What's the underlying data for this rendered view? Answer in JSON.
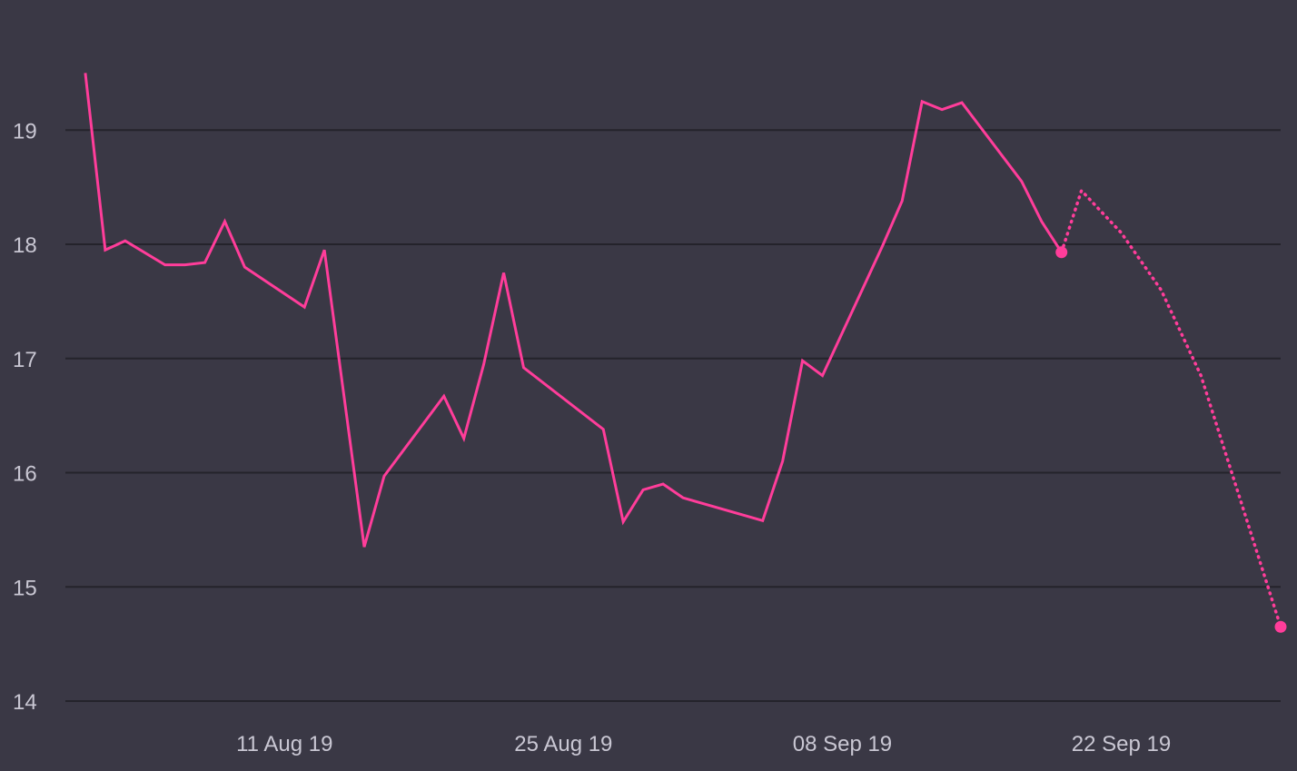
{
  "chart_data": {
    "type": "line",
    "title": "",
    "xlabel": "",
    "ylabel": "",
    "ylim": [
      14,
      20
    ],
    "xlim": [
      "2019-07-31",
      "2019-09-30"
    ],
    "grid": {
      "horizontal": true,
      "vertical": false
    },
    "colors": {
      "background": "#3a3845",
      "grid": "#24232b",
      "tick_text": "#c9c7d3",
      "series": "#ff3d9a"
    },
    "y_ticks": [
      "14",
      "15",
      "16",
      "17",
      "18",
      "19"
    ],
    "x_ticks": [
      {
        "date": "2019-08-11",
        "label": "11 Aug 19"
      },
      {
        "date": "2019-08-25",
        "label": "25 Aug 19"
      },
      {
        "date": "2019-09-08",
        "label": "08 Sep 19"
      },
      {
        "date": "2019-09-22",
        "label": "22 Sep 19"
      }
    ],
    "series": [
      {
        "style": "solid",
        "end_marker": true,
        "points": [
          {
            "x": "2019-08-01",
            "y": 19.5
          },
          {
            "x": "2019-08-02",
            "y": 17.95
          },
          {
            "x": "2019-08-03",
            "y": 18.03
          },
          {
            "x": "2019-08-05",
            "y": 17.82
          },
          {
            "x": "2019-08-06",
            "y": 17.82
          },
          {
            "x": "2019-08-07",
            "y": 17.84
          },
          {
            "x": "2019-08-08",
            "y": 18.2
          },
          {
            "x": "2019-08-09",
            "y": 17.8
          },
          {
            "x": "2019-08-12",
            "y": 17.45
          },
          {
            "x": "2019-08-13",
            "y": 17.95
          },
          {
            "x": "2019-08-15",
            "y": 15.35
          },
          {
            "x": "2019-08-16",
            "y": 15.97
          },
          {
            "x": "2019-08-19",
            "y": 16.67
          },
          {
            "x": "2019-08-20",
            "y": 16.3
          },
          {
            "x": "2019-08-21",
            "y": 16.95
          },
          {
            "x": "2019-08-22",
            "y": 17.75
          },
          {
            "x": "2019-08-23",
            "y": 16.92
          },
          {
            "x": "2019-08-27",
            "y": 16.38
          },
          {
            "x": "2019-08-28",
            "y": 15.57
          },
          {
            "x": "2019-08-29",
            "y": 15.85
          },
          {
            "x": "2019-08-30",
            "y": 15.9
          },
          {
            "x": "2019-08-31",
            "y": 15.78
          },
          {
            "x": "2019-09-04",
            "y": 15.58
          },
          {
            "x": "2019-09-05",
            "y": 16.1
          },
          {
            "x": "2019-09-06",
            "y": 16.98
          },
          {
            "x": "2019-09-07",
            "y": 16.85
          },
          {
            "x": "2019-09-10",
            "y": 17.98
          },
          {
            "x": "2019-09-11",
            "y": 18.38
          },
          {
            "x": "2019-09-12",
            "y": 19.25
          },
          {
            "x": "2019-09-13",
            "y": 19.18
          },
          {
            "x": "2019-09-14",
            "y": 19.24
          },
          {
            "x": "2019-09-17",
            "y": 18.55
          },
          {
            "x": "2019-09-18",
            "y": 18.2
          },
          {
            "x": "2019-09-19",
            "y": 17.93
          }
        ]
      },
      {
        "style": "dotted",
        "end_marker": true,
        "points": [
          {
            "x": "2019-09-19",
            "y": 17.93
          },
          {
            "x": "2019-09-20",
            "y": 18.47
          },
          {
            "x": "2019-09-22",
            "y": 18.1
          },
          {
            "x": "2019-09-24",
            "y": 17.6
          },
          {
            "x": "2019-09-26",
            "y": 16.85
          },
          {
            "x": "2019-09-28",
            "y": 15.75
          },
          {
            "x": "2019-09-30",
            "y": 14.65
          }
        ]
      }
    ]
  }
}
